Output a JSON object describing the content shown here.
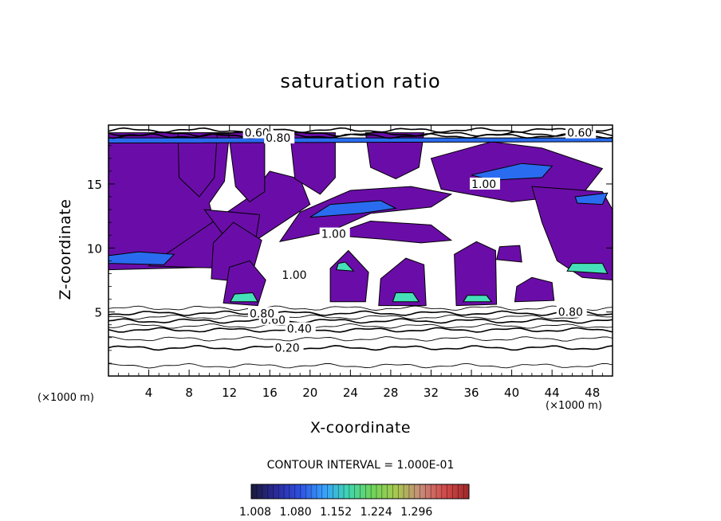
{
  "chart_data": {
    "type": "contour",
    "title": "saturation ratio",
    "xlabel": "X-coordinate",
    "ylabel": "Z-coordinate",
    "x_unit": "(×1000 m)",
    "y_unit": "(×1000 m)",
    "xlim": [
      0,
      50
    ],
    "ylim": [
      0,
      19.6
    ],
    "x_ticks": [
      4,
      8,
      12,
      16,
      20,
      24,
      28,
      32,
      36,
      40,
      44,
      48
    ],
    "y_ticks": [
      5,
      10,
      15
    ],
    "contour_interval_text": "CONTOUR INTERVAL = 1.000E-01",
    "contour_labels": [
      {
        "text": "0.20",
        "x": 16.5,
        "y": 2.2
      },
      {
        "text": "0.40",
        "x": 17.7,
        "y": 3.7
      },
      {
        "text": "0.60",
        "x": 15.1,
        "y": 4.4
      },
      {
        "text": "0.80",
        "x": 14.0,
        "y": 4.9
      },
      {
        "text": "0.80",
        "x": 44.6,
        "y": 5.0
      },
      {
        "text": "1.00",
        "x": 17.2,
        "y": 7.9
      },
      {
        "text": "1.00",
        "x": 21.1,
        "y": 11.1
      },
      {
        "text": "1.00",
        "x": 36.0,
        "y": 15.0
      },
      {
        "text": "0.60",
        "x": 45.5,
        "y": 19.0
      },
      {
        "text": "0.60",
        "x": 13.5,
        "y": 19.0
      },
      {
        "text": "0.80",
        "x": 15.6,
        "y": 18.6
      }
    ],
    "shaded_threshold": 1.0,
    "colorbar": {
      "ticks": [
        "1.008",
        "1.080",
        "1.152",
        "1.224",
        "1.296"
      ],
      "colors": [
        "#1a1a3a",
        "#2a2a9a",
        "#2f4fe0",
        "#36a0ff",
        "#3fd6b0",
        "#6ed45a",
        "#a8c850",
        "#c88a7a",
        "#d24a4a",
        "#a02828"
      ]
    },
    "supersaturated_regions": [
      {
        "level": "low",
        "polygon": [
          [
            0,
            8.3
          ],
          [
            10,
            8.5
          ],
          [
            11,
            10.5
          ],
          [
            10,
            13.5
          ],
          [
            11.5,
            15.2
          ],
          [
            12,
            19
          ],
          [
            0,
            19
          ]
        ]
      },
      {
        "level": "low",
        "polygon": [
          [
            4,
            8.6
          ],
          [
            12,
            8.4
          ],
          [
            15,
            10.8
          ],
          [
            20,
            13.4
          ],
          [
            19,
            15.4
          ],
          [
            16,
            16
          ],
          [
            14,
            14
          ]
        ]
      },
      {
        "level": "low",
        "polygon": [
          [
            9.5,
            13
          ],
          [
            12,
            10.4
          ],
          [
            14.5,
            10.2
          ],
          [
            15,
            12.6
          ]
        ]
      },
      {
        "level": "low",
        "polygon": [
          [
            10.2,
            7.6
          ],
          [
            14,
            7.3
          ],
          [
            15.2,
            10.6
          ],
          [
            12.4,
            12
          ],
          [
            10.4,
            10.4
          ]
        ]
      },
      {
        "level": "low",
        "polygon": [
          [
            11.4,
            5.7
          ],
          [
            14.8,
            5.5
          ],
          [
            15.6,
            7.5
          ],
          [
            14,
            9
          ],
          [
            12,
            8.5
          ]
        ]
      },
      {
        "level": "low",
        "polygon": [
          [
            11.9,
            19
          ],
          [
            15.5,
            19
          ],
          [
            15.5,
            14.4
          ],
          [
            14,
            13.6
          ],
          [
            12.6,
            14.8
          ]
        ]
      },
      {
        "level": "low",
        "polygon": [
          [
            6.9,
            19
          ],
          [
            10.8,
            19
          ],
          [
            10.5,
            15.5
          ],
          [
            9,
            14
          ],
          [
            7,
            15.5
          ]
        ]
      },
      {
        "level": "low",
        "polygon": [
          [
            17,
            10.5
          ],
          [
            22,
            11.3
          ],
          [
            26,
            12.7
          ],
          [
            32,
            13.2
          ],
          [
            34,
            14.2
          ],
          [
            30,
            14.8
          ],
          [
            24,
            14.5
          ],
          [
            19,
            12.8
          ]
        ]
      },
      {
        "level": "low",
        "polygon": [
          [
            22,
            11
          ],
          [
            27,
            10.7
          ],
          [
            31,
            10.4
          ],
          [
            34,
            10.6
          ],
          [
            32,
            11.8
          ],
          [
            26,
            12.1
          ]
        ]
      },
      {
        "level": "low",
        "polygon": [
          [
            18,
            19
          ],
          [
            22.5,
            19
          ],
          [
            22.5,
            15.5
          ],
          [
            21,
            14.2
          ],
          [
            18.5,
            15.4
          ]
        ]
      },
      {
        "level": "low",
        "polygon": [
          [
            25.5,
            19
          ],
          [
            31.3,
            19
          ],
          [
            30.8,
            16.3
          ],
          [
            28.5,
            15.4
          ],
          [
            26,
            16.3
          ]
        ]
      },
      {
        "level": "low",
        "polygon": [
          [
            32,
            17
          ],
          [
            38,
            18.3
          ],
          [
            43,
            17.8
          ],
          [
            49,
            16.2
          ],
          [
            47,
            14.2
          ],
          [
            40,
            13.6
          ],
          [
            33,
            14.6
          ]
        ]
      },
      {
        "level": "low",
        "polygon": [
          [
            42,
            14.8
          ],
          [
            49,
            14.4
          ],
          [
            50,
            13
          ],
          [
            50,
            7.5
          ],
          [
            47,
            7.7
          ],
          [
            44.5,
            9
          ],
          [
            43,
            12
          ]
        ]
      },
      {
        "level": "low",
        "polygon": [
          [
            34.5,
            5.5
          ],
          [
            38.5,
            5.6
          ],
          [
            38.4,
            9.8
          ],
          [
            36.5,
            10.5
          ],
          [
            34.3,
            9.5
          ]
        ]
      },
      {
        "level": "low",
        "polygon": [
          [
            22,
            5.8
          ],
          [
            25.5,
            5.8
          ],
          [
            25.8,
            8.1
          ],
          [
            23.8,
            9.8
          ],
          [
            22,
            8.4
          ]
        ]
      },
      {
        "level": "low",
        "polygon": [
          [
            26.8,
            5.5
          ],
          [
            31.5,
            5.5
          ],
          [
            31.3,
            8.7
          ],
          [
            29.5,
            9.2
          ],
          [
            27,
            7.6
          ]
        ]
      },
      {
        "level": "low",
        "polygon": [
          [
            40.3,
            5.8
          ],
          [
            44.2,
            5.9
          ],
          [
            44,
            7.3
          ],
          [
            42,
            7.7
          ],
          [
            40.5,
            7
          ]
        ]
      },
      {
        "level": "low",
        "polygon": [
          [
            38.5,
            9.1
          ],
          [
            41,
            8.9
          ],
          [
            40.8,
            10.2
          ],
          [
            38.8,
            10.1
          ]
        ]
      },
      {
        "level": "mid",
        "polygon": [
          [
            0,
            18.2
          ],
          [
            50,
            18.3
          ],
          [
            50,
            18.6
          ],
          [
            0,
            18.6
          ]
        ]
      },
      {
        "level": "mid",
        "polygon": [
          [
            0,
            8.8
          ],
          [
            5.5,
            8.7
          ],
          [
            6.5,
            9.5
          ],
          [
            3,
            9.7
          ],
          [
            0,
            9.4
          ]
        ]
      },
      {
        "level": "mid",
        "polygon": [
          [
            20,
            12.4
          ],
          [
            25,
            12.7
          ],
          [
            28.5,
            13.1
          ],
          [
            27,
            13.7
          ],
          [
            22,
            13.4
          ]
        ]
      },
      {
        "level": "mid",
        "polygon": [
          [
            36,
            15.7
          ],
          [
            41,
            16.6
          ],
          [
            44,
            16.4
          ],
          [
            43,
            15.5
          ],
          [
            38,
            15.3
          ]
        ]
      },
      {
        "level": "mid",
        "polygon": [
          [
            46.3,
            14
          ],
          [
            49.5,
            14.3
          ],
          [
            49,
            13.4
          ],
          [
            46.5,
            13.5
          ]
        ]
      },
      {
        "level": "high",
        "polygon": [
          [
            12.1,
            5.8
          ],
          [
            14.8,
            5.8
          ],
          [
            14.3,
            6.5
          ],
          [
            12.5,
            6.4
          ]
        ]
      },
      {
        "level": "high",
        "polygon": [
          [
            28.2,
            5.8
          ],
          [
            30.8,
            5.8
          ],
          [
            30.2,
            6.5
          ],
          [
            28.5,
            6.5
          ]
        ]
      },
      {
        "level": "high",
        "polygon": [
          [
            35.2,
            5.8
          ],
          [
            38,
            5.8
          ],
          [
            37.5,
            6.3
          ],
          [
            35.6,
            6.3
          ]
        ]
      },
      {
        "level": "high",
        "polygon": [
          [
            45.5,
            8.2
          ],
          [
            49.5,
            8
          ],
          [
            49,
            8.8
          ],
          [
            46,
            8.8
          ]
        ]
      },
      {
        "level": "high",
        "polygon": [
          [
            22.6,
            8.3
          ],
          [
            24.3,
            8.2
          ],
          [
            23.5,
            8.9
          ],
          [
            22.8,
            8.8
          ]
        ]
      }
    ],
    "subsaturated_contours": [
      {
        "level": 0.2,
        "z": 2.2
      },
      {
        "level": 0.3,
        "z": 2.9
      },
      {
        "level": 0.4,
        "z": 3.6
      },
      {
        "level": 0.5,
        "z": 3.9
      },
      {
        "level": 0.6,
        "z": 4.3
      },
      {
        "level": 0.7,
        "z": 4.6
      },
      {
        "level": 0.8,
        "z": 4.9
      },
      {
        "level": 0.9,
        "z": 5.3
      },
      {
        "level": 0.1,
        "z": 0.8
      },
      {
        "level": 0.6,
        "z": 18.9
      },
      {
        "level": 0.8,
        "z": 18.75
      },
      {
        "level": 0.4,
        "z": 19.2
      }
    ]
  }
}
